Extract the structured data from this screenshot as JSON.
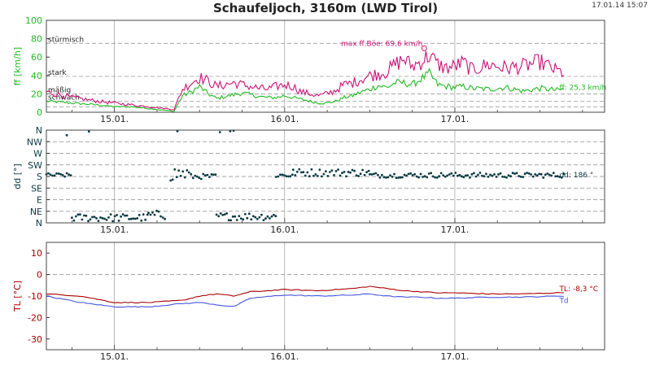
{
  "title": "Schaufeljoch, 3160m (LWD Tirol)",
  "timestamp": "17.01.14 15:07",
  "colors": {
    "ff": "#22bb22",
    "ffBoe": "#cc1177",
    "dd": "#0a3a44",
    "TL": "#aa0000",
    "Td": "#4455dd",
    "grid": "#8a8a8a",
    "axis": "#444444"
  },
  "x_axis": {
    "range_days": [
      14.6,
      17.88
    ],
    "ticks": [
      "15.01.",
      "16.01.",
      "17.01."
    ],
    "tick_days": [
      15,
      16,
      17
    ],
    "minor_day_offsets": [
      0.25,
      0.5,
      0.75
    ]
  },
  "chart_data": [
    {
      "type": "line",
      "panel": "wind-speed",
      "ylabel": "ff [km/h]",
      "ylim": [
        0,
        100
      ],
      "yticks": [
        0,
        20,
        40,
        60,
        80,
        100
      ],
      "reference_lines": [
        {
          "value": 75,
          "label": "stürmisch"
        },
        {
          "value": 39,
          "label": "stark"
        },
        {
          "value": 20,
          "label": "mäßig"
        },
        {
          "value": 12,
          "label": "schwach"
        },
        {
          "value": 6,
          "label": ""
        }
      ],
      "series": [
        {
          "key": "ff",
          "x": [
            14.6,
            14.75,
            14.9,
            15.0,
            15.1,
            15.2,
            15.3,
            15.35,
            15.4,
            15.45,
            15.5,
            15.55,
            15.6,
            15.65,
            15.7,
            15.75,
            15.8,
            15.85,
            15.9,
            15.95,
            16.0,
            16.05,
            16.1,
            16.15,
            16.2,
            16.25,
            16.3,
            16.35,
            16.4,
            16.45,
            16.5,
            16.55,
            16.6,
            16.65,
            16.7,
            16.75,
            16.8,
            16.85,
            16.9,
            16.95,
            17.0,
            17.05,
            17.1,
            17.2,
            17.3,
            17.4,
            17.5,
            17.6,
            17.65
          ],
          "values": [
            12,
            10,
            8,
            6,
            6,
            4,
            2,
            1,
            18,
            22,
            28,
            20,
            15,
            17,
            19,
            21,
            19,
            17,
            16,
            16,
            18,
            16,
            14,
            12,
            10,
            10,
            12,
            16,
            18,
            22,
            25,
            29,
            27,
            32,
            32,
            30,
            36,
            42,
            30,
            28,
            27,
            28,
            26,
            25,
            27,
            23,
            26,
            24,
            25
          ]
        },
        {
          "key": "ffBoe",
          "x": [
            14.6,
            14.75,
            14.9,
            15.0,
            15.1,
            15.2,
            15.3,
            15.35,
            15.4,
            15.45,
            15.5,
            15.55,
            15.6,
            15.65,
            15.7,
            15.75,
            15.8,
            15.85,
            15.9,
            15.95,
            16.0,
            16.05,
            16.1,
            16.15,
            16.2,
            16.25,
            16.3,
            16.35,
            16.4,
            16.45,
            16.5,
            16.55,
            16.6,
            16.65,
            16.7,
            16.75,
            16.8,
            16.85,
            16.9,
            16.95,
            17.0,
            17.05,
            17.1,
            17.2,
            17.3,
            17.4,
            17.5,
            17.6,
            17.65
          ],
          "values": [
            22,
            16,
            12,
            10,
            8,
            6,
            4,
            3,
            25,
            32,
            38,
            34,
            28,
            30,
            32,
            30,
            28,
            26,
            25,
            28,
            30,
            28,
            22,
            20,
            18,
            20,
            24,
            30,
            32,
            36,
            40,
            42,
            44,
            52,
            58,
            50,
            55,
            62,
            52,
            48,
            50,
            54,
            46,
            52,
            48,
            50,
            55,
            45,
            42
          ]
        }
      ],
      "annotations": [
        {
          "text": "max ff.Böe: 69,6 km/h",
          "x": 16.82,
          "y": 69.6
        },
        {
          "text": "ff: 25,3 km/h",
          "x": 17.6,
          "y": 27
        }
      ]
    },
    {
      "type": "scatter",
      "panel": "wind-direction",
      "ylabel": "dd [°]",
      "ylim": [
        0,
        360
      ],
      "yticks": [
        "N",
        "NE",
        "E",
        "SE",
        "S",
        "SW",
        "W",
        "NW",
        "N"
      ],
      "ytick_values": [
        0,
        45,
        90,
        135,
        180,
        225,
        270,
        315,
        360
      ],
      "segments": [
        {
          "from": 14.6,
          "to": 14.75,
          "center": 185,
          "spread": 8
        },
        {
          "from": 14.75,
          "to": 15.2,
          "center": 20,
          "spread": 15
        },
        {
          "from": 15.2,
          "to": 15.3,
          "center": 30,
          "spread": 18
        },
        {
          "from": 15.33,
          "to": 15.45,
          "center": 190,
          "spread": 30
        },
        {
          "from": 15.45,
          "to": 15.6,
          "center": 180,
          "spread": 10
        },
        {
          "from": 15.6,
          "to": 15.95,
          "center": 25,
          "spread": 15
        },
        {
          "from": 15.95,
          "to": 16.05,
          "center": 185,
          "spread": 10
        },
        {
          "from": 16.05,
          "to": 16.5,
          "center": 195,
          "spread": 15
        },
        {
          "from": 16.5,
          "to": 17.65,
          "center": 185,
          "spread": 10
        }
      ],
      "annotations": [
        {
          "text": "dd: 186 °",
          "x": 17.6,
          "y": 186
        }
      ]
    },
    {
      "type": "line",
      "panel": "temperature",
      "ylabel": "TL [°C]",
      "ylim": [
        -35,
        15
      ],
      "yticks": [
        -30,
        -20,
        -10,
        0,
        10
      ],
      "series": [
        {
          "key": "TL",
          "x": [
            14.6,
            14.8,
            15.0,
            15.2,
            15.4,
            15.5,
            15.6,
            15.7,
            15.8,
            16.0,
            16.2,
            16.4,
            16.5,
            16.6,
            16.7,
            16.8,
            16.9,
            17.0,
            17.2,
            17.4,
            17.6,
            17.65
          ],
          "values": [
            -9,
            -10,
            -13,
            -13,
            -12,
            -10,
            -9,
            -10,
            -8,
            -7,
            -7.5,
            -6.5,
            -5.5,
            -6.5,
            -7.5,
            -8,
            -8.5,
            -8.5,
            -9,
            -9,
            -8.5,
            -8.3
          ]
        },
        {
          "key": "Td",
          "x": [
            14.6,
            14.8,
            15.0,
            15.2,
            15.4,
            15.5,
            15.6,
            15.7,
            15.8,
            16.0,
            16.2,
            16.4,
            16.5,
            16.6,
            16.7,
            16.8,
            16.9,
            17.0,
            17.2,
            17.4,
            17.6,
            17.65
          ],
          "values": [
            -10,
            -13,
            -15,
            -15,
            -13.5,
            -13,
            -14,
            -15,
            -11,
            -9.5,
            -10,
            -9.5,
            -9,
            -10,
            -10.5,
            -10.5,
            -11,
            -11,
            -10.5,
            -10.5,
            -10,
            -10
          ]
        }
      ],
      "annotations": [
        {
          "text": "TL: -8,3 °C",
          "x": 17.6,
          "y": -6.5
        },
        {
          "text": "Td",
          "x": 17.6,
          "y": -12
        }
      ]
    }
  ]
}
